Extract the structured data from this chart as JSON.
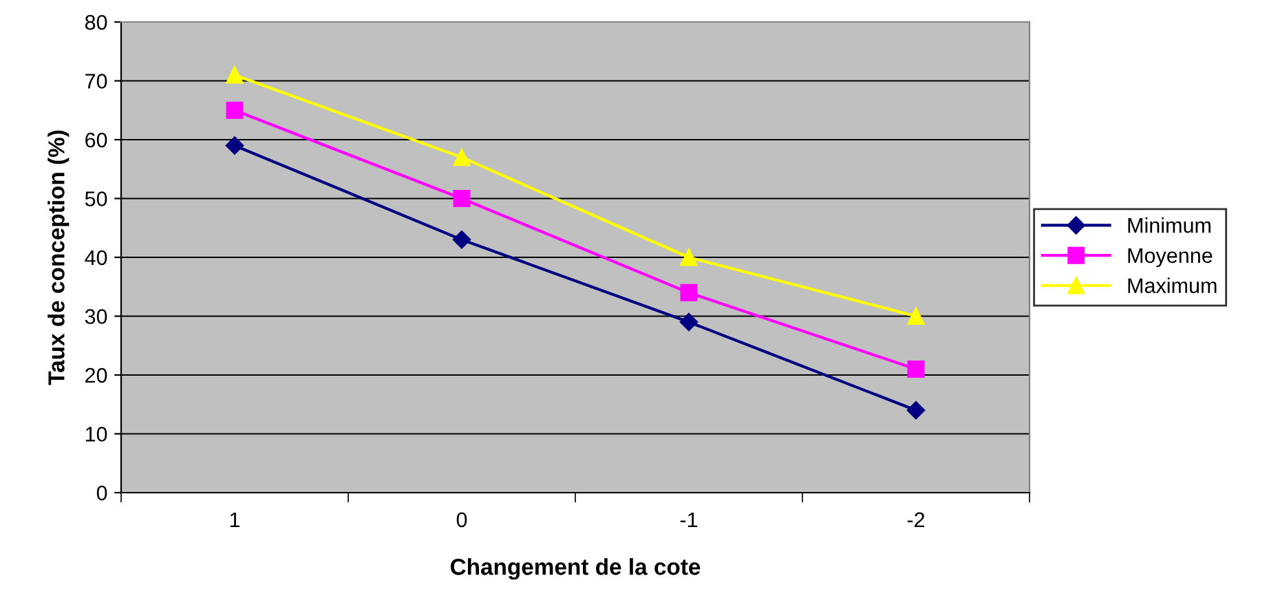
{
  "chart_data": {
    "type": "line",
    "xlabel": "Changement de la cote",
    "ylabel": "Taux de conception (%)",
    "categories": [
      "1",
      "0",
      "-1",
      "-2"
    ],
    "series": [
      {
        "name": "Minimum",
        "color": "#000080",
        "values": [
          59,
          43,
          29,
          14
        ],
        "marker": "diamond"
      },
      {
        "name": "Moyenne",
        "color": "#ff00ff",
        "values": [
          65,
          50,
          34,
          21
        ],
        "marker": "square"
      },
      {
        "name": "Maximum",
        "color": "#ffff00",
        "values": [
          71,
          57,
          40,
          30
        ],
        "marker": "triangle"
      }
    ],
    "ylim": [
      0,
      80
    ],
    "yticks": [
      0,
      10,
      20,
      30,
      40,
      50,
      60,
      70,
      80
    ],
    "grid": "y",
    "legend": "right",
    "line_style": "solid"
  }
}
